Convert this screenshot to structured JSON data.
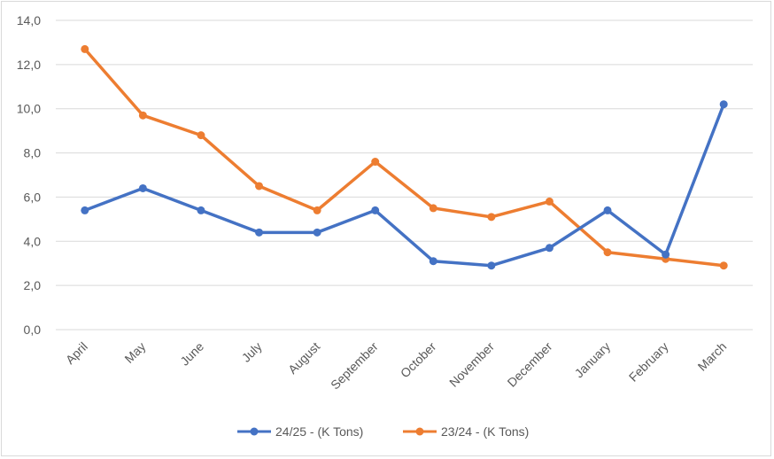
{
  "chart_data": {
    "type": "line",
    "title": "",
    "xlabel": "",
    "ylabel": "",
    "categories": [
      "April",
      "May",
      "June",
      "July",
      "August",
      "September",
      "October",
      "November",
      "December",
      "January",
      "February",
      "March"
    ],
    "ylim": [
      0,
      14
    ],
    "yticks": [
      "0,0",
      "2,0",
      "4,0",
      "6,0",
      "8,0",
      "10,0",
      "12,0",
      "14,0"
    ],
    "grid": true,
    "legend_position": "bottom",
    "series": [
      {
        "name": "24/25 - (K Tons)",
        "color": "#4472C4",
        "values": [
          5.4,
          6.4,
          5.4,
          4.4,
          4.4,
          5.4,
          3.1,
          2.9,
          3.7,
          5.4,
          3.4,
          10.2
        ]
      },
      {
        "name": "23/24 - (K Tons)",
        "color": "#ED7D31",
        "values": [
          12.7,
          9.7,
          8.8,
          6.5,
          5.4,
          7.6,
          5.5,
          5.1,
          5.8,
          3.5,
          3.2,
          2.9
        ]
      }
    ]
  }
}
